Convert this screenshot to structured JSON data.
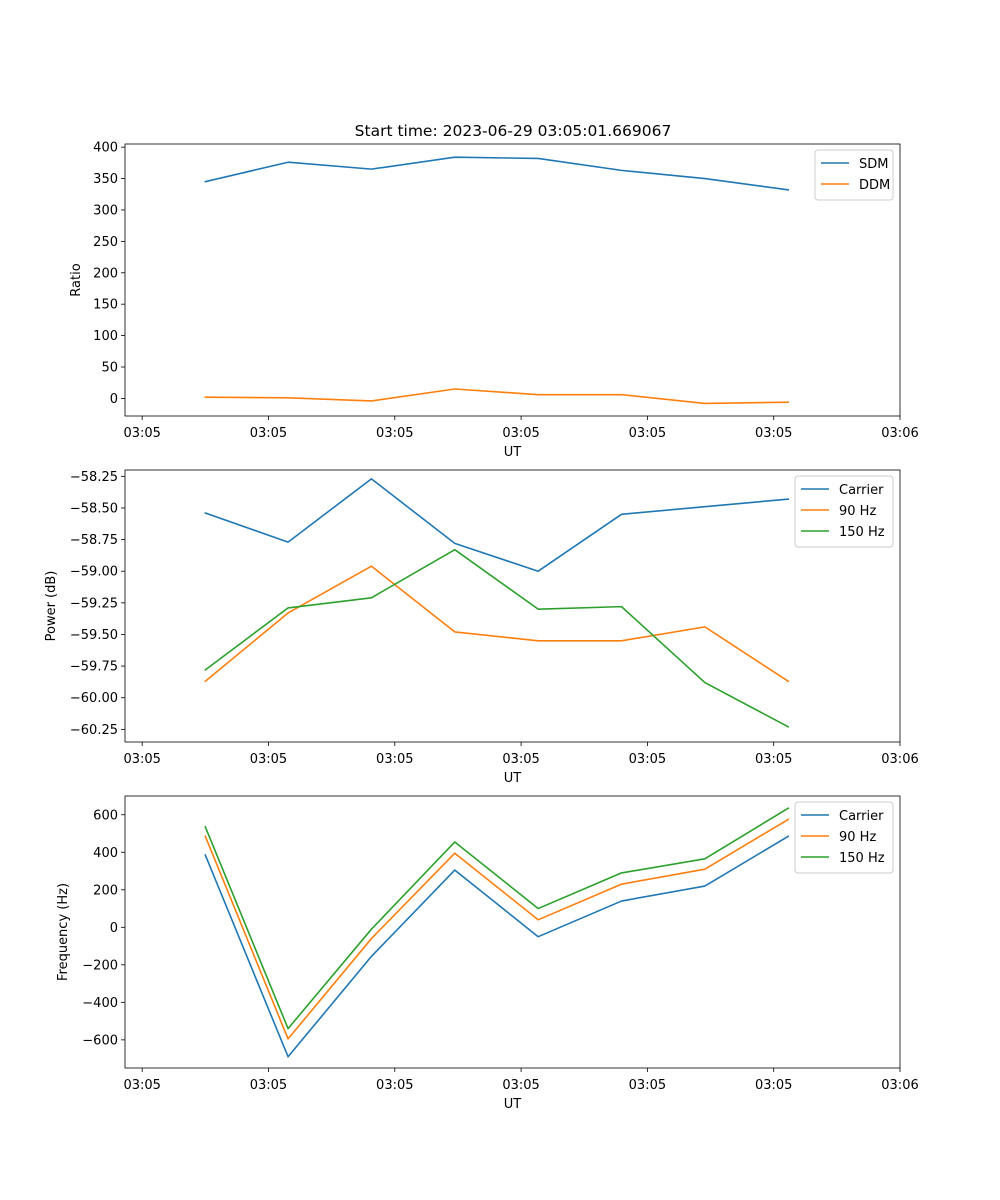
{
  "suptitle": "Start time: 2023-06-29 03:05:01.669067",
  "chart_data": [
    {
      "type": "line",
      "title": "Start time: 2023-06-29 03:05:01.669067",
      "xlabel": "UT",
      "ylabel": "Ratio",
      "xticklabels": [
        "03:05",
        "03:05",
        "03:05",
        "03:05",
        "03:05",
        "03:05",
        "03:06"
      ],
      "xlim": [
        -0.136,
        6.0
      ],
      "ylim": [
        -28,
        405
      ],
      "yticks": [
        0,
        50,
        100,
        150,
        200,
        250,
        300,
        350,
        400
      ],
      "yticklabels": [
        "0",
        "50",
        "100",
        "150",
        "200",
        "250",
        "300",
        "350",
        "400"
      ],
      "x": [
        0.5,
        1.155,
        1.815,
        2.475,
        3.135,
        3.795,
        4.455,
        5.115
      ],
      "legend_position": "upper right",
      "series": [
        {
          "name": "SDM",
          "color": "#1f77b4",
          "values": [
            345,
            376,
            365,
            384,
            382,
            363,
            350,
            332
          ]
        },
        {
          "name": "DDM",
          "color": "#ff7f0e",
          "values": [
            2,
            1,
            -4,
            15,
            6,
            6,
            -8,
            -6
          ]
        }
      ]
    },
    {
      "type": "line",
      "title": "",
      "xlabel": "UT",
      "ylabel": "Power (dB)",
      "xticklabels": [
        "03:05",
        "03:05",
        "03:05",
        "03:05",
        "03:05",
        "03:05",
        "03:06"
      ],
      "xlim": [
        -0.136,
        6.0
      ],
      "ylim": [
        -60.35,
        -58.2
      ],
      "yticks": [
        -60.25,
        -60.0,
        -59.75,
        -59.5,
        -59.25,
        -59.0,
        -58.75,
        -58.5,
        -58.25
      ],
      "yticklabels": [
        "−60.25",
        "−60.00",
        "−59.75",
        "−59.50",
        "−59.25",
        "−59.00",
        "−58.75",
        "−58.50",
        "−58.25"
      ],
      "x": [
        0.5,
        1.155,
        1.815,
        2.475,
        3.135,
        3.795,
        4.455,
        5.115
      ],
      "legend_position": "upper right",
      "series": [
        {
          "name": "Carrier",
          "color": "#1f77b4",
          "values": [
            -58.54,
            -58.77,
            -58.27,
            -58.78,
            -59.0,
            -58.55,
            -58.49,
            -58.43
          ]
        },
        {
          "name": "90 Hz",
          "color": "#ff7f0e",
          "values": [
            -59.87,
            -59.33,
            -58.96,
            -59.48,
            -59.55,
            -59.55,
            -59.44,
            -59.87
          ]
        },
        {
          "name": "150 Hz",
          "color": "#2ca02c",
          "values": [
            -59.78,
            -59.29,
            -59.21,
            -58.83,
            -59.3,
            -59.28,
            -59.88,
            -60.23
          ]
        }
      ]
    },
    {
      "type": "line",
      "title": "",
      "xlabel": "UT",
      "ylabel": "Frequency (Hz)",
      "xticklabels": [
        "03:05",
        "03:05",
        "03:05",
        "03:05",
        "03:05",
        "03:05",
        "03:06"
      ],
      "xlim": [
        -0.136,
        6.0
      ],
      "ylim": [
        -750,
        700
      ],
      "yticks": [
        -600,
        -400,
        -200,
        0,
        200,
        400,
        600
      ],
      "yticklabels": [
        "−600",
        "−400",
        "−200",
        "0",
        "200",
        "400",
        "600"
      ],
      "x": [
        0.5,
        1.155,
        1.815,
        2.475,
        3.135,
        3.795,
        4.455,
        5.115
      ],
      "legend_position": "upper right",
      "series": [
        {
          "name": "Carrier",
          "color": "#1f77b4",
          "values": [
            385,
            -690,
            -155,
            305,
            -50,
            140,
            220,
            485
          ]
        },
        {
          "name": "90 Hz",
          "color": "#ff7f0e",
          "values": [
            485,
            -595,
            -60,
            395,
            40,
            230,
            310,
            575
          ]
        },
        {
          "name": "150 Hz",
          "color": "#2ca02c",
          "values": [
            535,
            -540,
            -10,
            455,
            100,
            290,
            365,
            635
          ]
        }
      ]
    }
  ]
}
